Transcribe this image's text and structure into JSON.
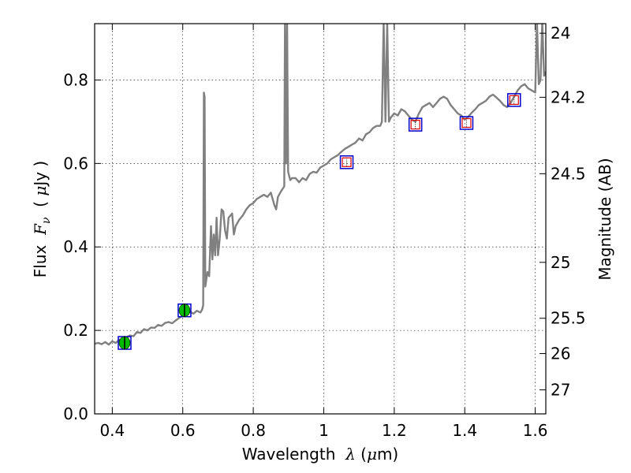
{
  "chart_data": {
    "type": "line",
    "xlabel": "Wavelength  λ (μm)",
    "ylabel": "Flux  Fν  ( μJy )",
    "ylabel_right": "Magnitude (AB)",
    "xlim": [
      0.35,
      1.63
    ],
    "ylim": [
      0.0,
      0.935
    ],
    "grid": true,
    "x_ticks": [
      {
        "value": 0.4,
        "label": "0.4"
      },
      {
        "value": 0.6,
        "label": "0.6"
      },
      {
        "value": 0.8,
        "label": "0.8"
      },
      {
        "value": 1.0,
        "label": "1"
      },
      {
        "value": 1.2,
        "label": "1.2"
      },
      {
        "value": 1.4,
        "label": "1.4"
      },
      {
        "value": 1.6,
        "label": "1.6"
      }
    ],
    "y_ticks": [
      {
        "value": 0.0,
        "label": "0.0"
      },
      {
        "value": 0.2,
        "label": "0.2"
      },
      {
        "value": 0.4,
        "label": "0.4"
      },
      {
        "value": 0.6,
        "label": "0.6"
      },
      {
        "value": 0.8,
        "label": "0.8"
      }
    ],
    "mag_ticks": [
      {
        "mag": 24,
        "label": "24"
      },
      {
        "mag": 24.2,
        "label": "24.2"
      },
      {
        "mag": 24.5,
        "label": "24.5"
      },
      {
        "mag": 25,
        "label": "25"
      },
      {
        "mag": 25.5,
        "label": "25.5"
      },
      {
        "mag": 26,
        "label": "26"
      },
      {
        "mag": 27,
        "label": "27"
      }
    ],
    "spectrum": {
      "color": "#808080",
      "points": [
        [
          0.35,
          0.168
        ],
        [
          0.36,
          0.17
        ],
        [
          0.37,
          0.167
        ],
        [
          0.38,
          0.172
        ],
        [
          0.39,
          0.166
        ],
        [
          0.4,
          0.174
        ],
        [
          0.41,
          0.17
        ],
        [
          0.42,
          0.178
        ],
        [
          0.43,
          0.175
        ],
        [
          0.44,
          0.183
        ],
        [
          0.45,
          0.188
        ],
        [
          0.46,
          0.186
        ],
        [
          0.47,
          0.196
        ],
        [
          0.48,
          0.194
        ],
        [
          0.49,
          0.203
        ],
        [
          0.5,
          0.2
        ],
        [
          0.51,
          0.207
        ],
        [
          0.52,
          0.206
        ],
        [
          0.53,
          0.213
        ],
        [
          0.54,
          0.211
        ],
        [
          0.55,
          0.218
        ],
        [
          0.56,
          0.22
        ],
        [
          0.57,
          0.217
        ],
        [
          0.58,
          0.224
        ],
        [
          0.59,
          0.23
        ],
        [
          0.6,
          0.236
        ],
        [
          0.61,
          0.242
        ],
        [
          0.62,
          0.245
        ],
        [
          0.63,
          0.24
        ],
        [
          0.64,
          0.247
        ],
        [
          0.65,
          0.243
        ],
        [
          0.655,
          0.25
        ],
        [
          0.658,
          0.26
        ],
        [
          0.66,
          0.77
        ],
        [
          0.662,
          0.76
        ],
        [
          0.664,
          0.305
        ],
        [
          0.67,
          0.34
        ],
        [
          0.675,
          0.33
        ],
        [
          0.68,
          0.45
        ],
        [
          0.684,
          0.37
        ],
        [
          0.688,
          0.43
        ],
        [
          0.692,
          0.38
        ],
        [
          0.696,
          0.47
        ],
        [
          0.7,
          0.38
        ],
        [
          0.705,
          0.42
        ],
        [
          0.71,
          0.49
        ],
        [
          0.715,
          0.485
        ],
        [
          0.72,
          0.44
        ],
        [
          0.725,
          0.42
        ],
        [
          0.73,
          0.47
        ],
        [
          0.74,
          0.48
        ],
        [
          0.745,
          0.43
        ],
        [
          0.75,
          0.45
        ],
        [
          0.76,
          0.465
        ],
        [
          0.77,
          0.475
        ],
        [
          0.78,
          0.49
        ],
        [
          0.79,
          0.5
        ],
        [
          0.8,
          0.505
        ],
        [
          0.81,
          0.515
        ],
        [
          0.82,
          0.52
        ],
        [
          0.83,
          0.525
        ],
        [
          0.84,
          0.52
        ],
        [
          0.85,
          0.53
        ],
        [
          0.86,
          0.5
        ],
        [
          0.865,
          0.49
        ],
        [
          0.87,
          0.52
        ],
        [
          0.88,
          0.535
        ],
        [
          0.888,
          0.545
        ],
        [
          0.89,
          0.94
        ],
        [
          0.893,
          0.6
        ],
        [
          0.896,
          0.94
        ],
        [
          0.899,
          0.58
        ],
        [
          0.905,
          0.56
        ],
        [
          0.91,
          0.565
        ],
        [
          0.92,
          0.565
        ],
        [
          0.93,
          0.555
        ],
        [
          0.94,
          0.565
        ],
        [
          0.95,
          0.56
        ],
        [
          0.96,
          0.575
        ],
        [
          0.97,
          0.58
        ],
        [
          0.98,
          0.578
        ],
        [
          0.99,
          0.59
        ],
        [
          1.0,
          0.595
        ],
        [
          1.01,
          0.6
        ],
        [
          1.02,
          0.61
        ],
        [
          1.03,
          0.615
        ],
        [
          1.04,
          0.62
        ],
        [
          1.05,
          0.628
        ],
        [
          1.06,
          0.635
        ],
        [
          1.07,
          0.64
        ],
        [
          1.08,
          0.645
        ],
        [
          1.09,
          0.65
        ],
        [
          1.1,
          0.66
        ],
        [
          1.11,
          0.655
        ],
        [
          1.12,
          0.67
        ],
        [
          1.13,
          0.675
        ],
        [
          1.14,
          0.685
        ],
        [
          1.15,
          0.69
        ],
        [
          1.16,
          0.69
        ],
        [
          1.165,
          0.7
        ],
        [
          1.17,
          0.94
        ],
        [
          1.175,
          0.7
        ],
        [
          1.18,
          0.94
        ],
        [
          1.185,
          0.7
        ],
        [
          1.19,
          0.71
        ],
        [
          1.2,
          0.72
        ],
        [
          1.21,
          0.715
        ],
        [
          1.22,
          0.73
        ],
        [
          1.23,
          0.725
        ],
        [
          1.24,
          0.715
        ],
        [
          1.25,
          0.705
        ],
        [
          1.26,
          0.7
        ],
        [
          1.27,
          0.72
        ],
        [
          1.28,
          0.735
        ],
        [
          1.29,
          0.74
        ],
        [
          1.3,
          0.745
        ],
        [
          1.31,
          0.735
        ],
        [
          1.32,
          0.745
        ],
        [
          1.33,
          0.755
        ],
        [
          1.34,
          0.76
        ],
        [
          1.35,
          0.755
        ],
        [
          1.36,
          0.74
        ],
        [
          1.37,
          0.73
        ],
        [
          1.38,
          0.72
        ],
        [
          1.39,
          0.715
        ],
        [
          1.4,
          0.705
        ],
        [
          1.41,
          0.712
        ],
        [
          1.42,
          0.722
        ],
        [
          1.43,
          0.73
        ],
        [
          1.44,
          0.74
        ],
        [
          1.45,
          0.745
        ],
        [
          1.46,
          0.75
        ],
        [
          1.47,
          0.76
        ],
        [
          1.48,
          0.765
        ],
        [
          1.49,
          0.758
        ],
        [
          1.5,
          0.75
        ],
        [
          1.51,
          0.74
        ],
        [
          1.52,
          0.735
        ],
        [
          1.53,
          0.745
        ],
        [
          1.54,
          0.76
        ],
        [
          1.55,
          0.775
        ],
        [
          1.56,
          0.785
        ],
        [
          1.57,
          0.79
        ],
        [
          1.58,
          0.78
        ],
        [
          1.59,
          0.775
        ],
        [
          1.6,
          0.77
        ],
        [
          1.605,
          0.94
        ],
        [
          1.61,
          0.79
        ],
        [
          1.615,
          0.8
        ],
        [
          1.62,
          0.94
        ],
        [
          1.625,
          0.81
        ],
        [
          1.63,
          0.82
        ]
      ]
    },
    "photometry": [
      {
        "x": 0.435,
        "y": 0.17,
        "err": 0.016,
        "marker": "circle",
        "fill": "#00bb00"
      },
      {
        "x": 0.605,
        "y": 0.248,
        "err": 0.016,
        "marker": "circle",
        "fill": "#00bb00"
      },
      {
        "x": 1.065,
        "y": 0.603,
        "err": 0.01,
        "marker": "square",
        "fill": "none"
      },
      {
        "x": 1.26,
        "y": 0.693,
        "err": 0.01,
        "marker": "square",
        "fill": "none"
      },
      {
        "x": 1.405,
        "y": 0.697,
        "err": 0.01,
        "marker": "square",
        "fill": "none"
      },
      {
        "x": 1.54,
        "y": 0.752,
        "err": 0.01,
        "marker": "square",
        "fill": "none"
      }
    ],
    "model_boxes": [
      {
        "x": 0.435,
        "y": 0.17
      },
      {
        "x": 0.605,
        "y": 0.248
      },
      {
        "x": 1.065,
        "y": 0.603
      },
      {
        "x": 1.26,
        "y": 0.693
      },
      {
        "x": 1.405,
        "y": 0.697
      },
      {
        "x": 1.54,
        "y": 0.752
      }
    ],
    "colors": {
      "model_box": "#0000cc",
      "obs_box": "#dd0000",
      "spectrum": "#808080"
    }
  }
}
